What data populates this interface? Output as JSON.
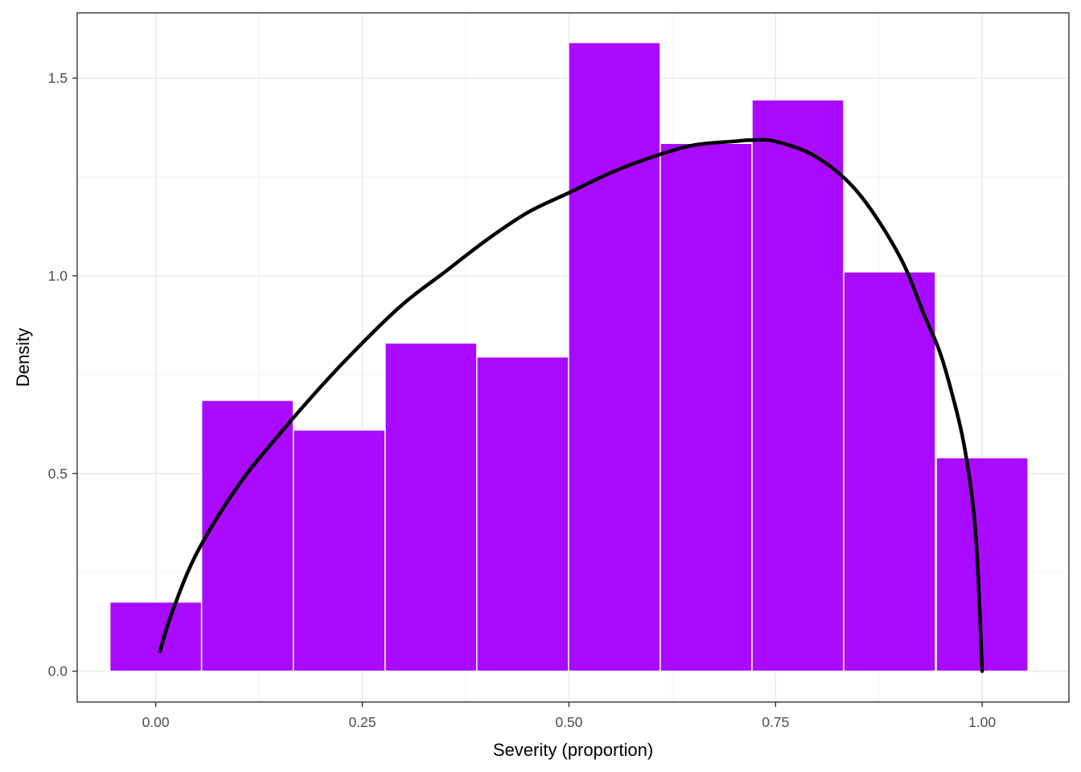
{
  "chart_data": {
    "type": "bar",
    "title": "",
    "xlabel": "Severity (proportion)",
    "ylabel": "Density",
    "xlim": [
      -0.095,
      1.105
    ],
    "ylim": [
      -0.078,
      1.665
    ],
    "x_ticks": [
      0.0,
      0.25,
      0.5,
      0.75,
      1.0
    ],
    "x_tick_labels": [
      "0.00",
      "0.25",
      "0.50",
      "0.75",
      "1.00"
    ],
    "y_ticks": [
      0.0,
      0.5,
      1.0,
      1.5
    ],
    "y_tick_labels": [
      "0.0",
      "0.5",
      "1.0",
      "1.5"
    ],
    "grid": true,
    "bin_width": 0.111,
    "bins": [
      {
        "center": 0.0,
        "density": 0.175
      },
      {
        "center": 0.111,
        "density": 0.685
      },
      {
        "center": 0.222,
        "density": 0.61
      },
      {
        "center": 0.333,
        "density": 0.83
      },
      {
        "center": 0.444,
        "density": 0.795
      },
      {
        "center": 0.555,
        "density": 1.59
      },
      {
        "center": 0.666,
        "density": 1.335
      },
      {
        "center": 0.777,
        "density": 1.445
      },
      {
        "center": 0.888,
        "density": 1.01
      },
      {
        "center": 1.0,
        "density": 0.54
      }
    ],
    "density_curve": {
      "x": [
        0.005,
        0.02,
        0.05,
        0.1,
        0.15,
        0.2,
        0.25,
        0.3,
        0.35,
        0.4,
        0.45,
        0.5,
        0.55,
        0.6,
        0.65,
        0.7,
        0.72,
        0.75,
        0.8,
        0.85,
        0.9,
        0.93,
        0.95,
        0.97,
        0.98,
        0.99,
        0.995,
        1.0
      ],
      "y": [
        0.05,
        0.15,
        0.3,
        0.47,
        0.6,
        0.72,
        0.83,
        0.93,
        1.01,
        1.09,
        1.16,
        1.21,
        1.26,
        1.3,
        1.33,
        1.34,
        1.343,
        1.34,
        1.3,
        1.21,
        1.05,
        0.9,
        0.8,
        0.65,
        0.55,
        0.4,
        0.25,
        0.0
      ]
    },
    "colors": {
      "bar_fill": "#aa0aff",
      "bar_border": "#ffffff",
      "curve": "#000000",
      "grid_major": "#ebebeb",
      "grid_minor": "#f3f3f3",
      "panel_border": "#333333"
    }
  }
}
